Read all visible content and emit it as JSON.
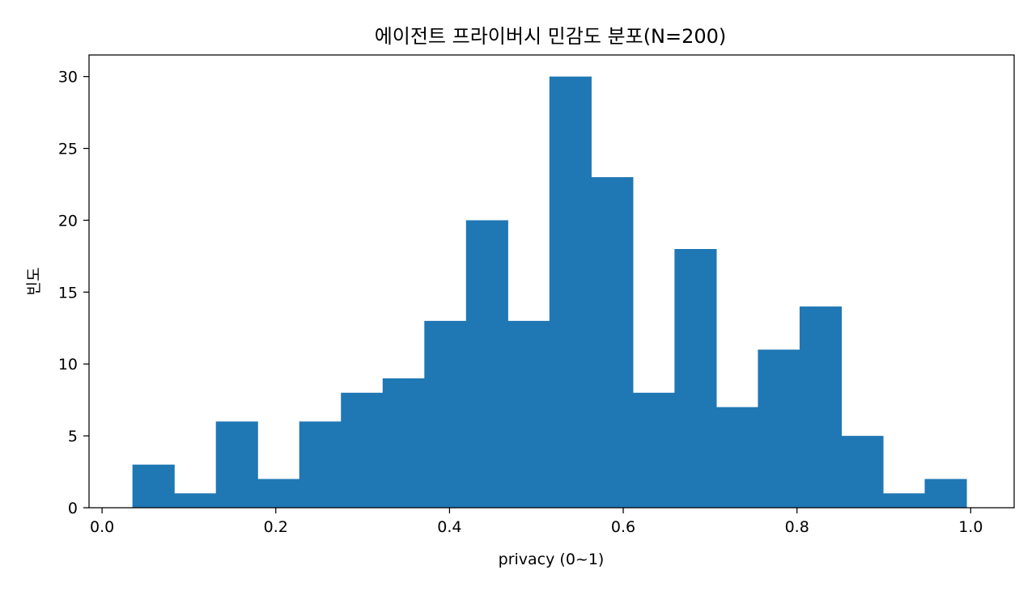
{
  "chart_data": {
    "type": "bar",
    "title": "에이전트 프라이버시 민감도 분포(N=200)",
    "xlabel": "privacy (0~1)",
    "ylabel": "빈도",
    "xlim": [
      -0.015,
      1.05
    ],
    "ylim": [
      0,
      31.5
    ],
    "xticks": [
      "0.0",
      "0.2",
      "0.4",
      "0.6",
      "0.8",
      "1.0"
    ],
    "yticks": [
      "0",
      "5",
      "10",
      "15",
      "20",
      "25",
      "30"
    ],
    "grid": false,
    "bins": [
      {
        "x0": 0.035,
        "x1": 0.083,
        "value": 3
      },
      {
        "x0": 0.083,
        "x1": 0.131,
        "value": 1
      },
      {
        "x0": 0.131,
        "x1": 0.179,
        "value": 6
      },
      {
        "x0": 0.179,
        "x1": 0.227,
        "value": 2
      },
      {
        "x0": 0.227,
        "x1": 0.275,
        "value": 6
      },
      {
        "x0": 0.275,
        "x1": 0.323,
        "value": 8
      },
      {
        "x0": 0.323,
        "x1": 0.371,
        "value": 9
      },
      {
        "x0": 0.371,
        "x1": 0.419,
        "value": 13
      },
      {
        "x0": 0.419,
        "x1": 0.467,
        "value": 20
      },
      {
        "x0": 0.467,
        "x1": 0.515,
        "value": 13
      },
      {
        "x0": 0.515,
        "x1": 0.563,
        "value": 30
      },
      {
        "x0": 0.563,
        "x1": 0.611,
        "value": 23
      },
      {
        "x0": 0.611,
        "x1": 0.659,
        "value": 8
      },
      {
        "x0": 0.659,
        "x1": 0.707,
        "value": 18
      },
      {
        "x0": 0.707,
        "x1": 0.755,
        "value": 7
      },
      {
        "x0": 0.755,
        "x1": 0.803,
        "value": 11
      },
      {
        "x0": 0.803,
        "x1": 0.851,
        "value": 14
      },
      {
        "x0": 0.851,
        "x1": 0.899,
        "value": 5
      },
      {
        "x0": 0.899,
        "x1": 0.947,
        "value": 1
      },
      {
        "x0": 0.947,
        "x1": 0.995,
        "value": 2
      }
    ],
    "colors": {
      "bar": "#1f77b4"
    }
  }
}
